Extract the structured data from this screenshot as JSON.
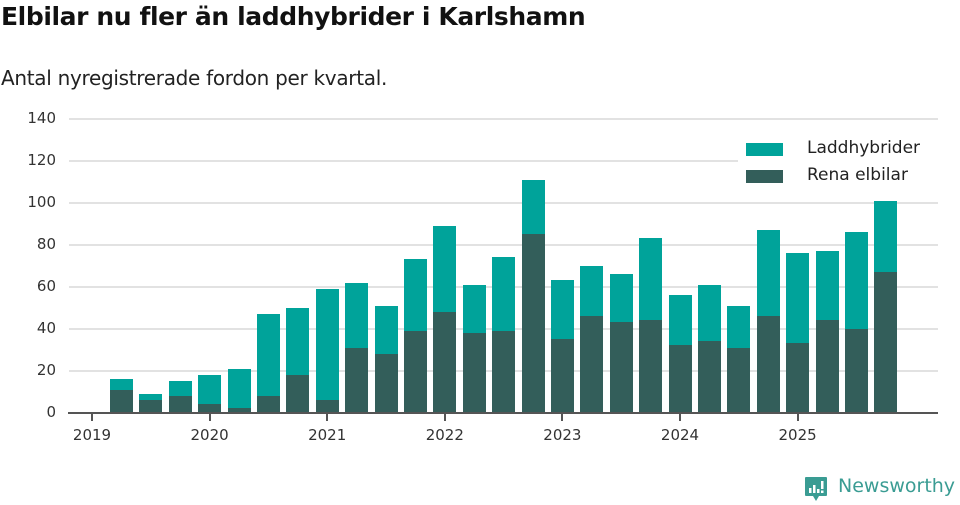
{
  "header": {
    "title": "Elbilar nu fler än laddhybrider i Karlshamn",
    "subtitle": "Antal nyregistrerade fordon per kvartal."
  },
  "legend": [
    {
      "label": "Laddhybrider",
      "color": "#00A39A"
    },
    {
      "label": "Rena elbilar",
      "color": "#335E5A"
    }
  ],
  "brand": {
    "name": "Newsworthy",
    "icon": "newsworthy-logo-icon",
    "color": "#3a9c93"
  },
  "chart_data": {
    "type": "bar",
    "stacked": true,
    "title": "Elbilar nu fler än laddhybrider i Karlshamn",
    "subtitle": "Antal nyregistrerade fordon per kvartal.",
    "xlabel": "",
    "ylabel": "",
    "ylim": [
      0,
      140
    ],
    "yticks": [
      0,
      20,
      40,
      60,
      80,
      100,
      120,
      140
    ],
    "xtick_labels": [
      "2019",
      "2020",
      "2021",
      "2022",
      "2023",
      "2024",
      "2025"
    ],
    "grid": true,
    "legend_position": "top-right",
    "categories": [
      "2019Q2",
      "2019Q3",
      "2019Q4",
      "2020Q1",
      "2020Q2",
      "2020Q3",
      "2020Q4",
      "2021Q1",
      "2021Q2",
      "2021Q3",
      "2021Q4",
      "2022Q1",
      "2022Q2",
      "2022Q3",
      "2022Q4",
      "2023Q1",
      "2023Q2",
      "2023Q3",
      "2023Q4",
      "2024Q1",
      "2024Q2",
      "2024Q3",
      "2024Q4",
      "2025Q1",
      "2025Q2",
      "2025Q3",
      "2025Q4"
    ],
    "series": [
      {
        "name": "Rena elbilar",
        "color": "#335E5A",
        "values": [
          11,
          6,
          8,
          4,
          2,
          8,
          18,
          6,
          31,
          28,
          39,
          48,
          38,
          39,
          85,
          35,
          46,
          43,
          44,
          32,
          34,
          31,
          46,
          33,
          44,
          40,
          67
        ]
      },
      {
        "name": "Laddhybrider",
        "color": "#00A39A",
        "values": [
          5,
          3,
          7,
          14,
          19,
          39,
          32,
          53,
          31,
          23,
          34,
          41,
          23,
          35,
          26,
          28,
          24,
          23,
          39,
          24,
          27,
          20,
          41,
          43,
          33,
          46,
          34
        ]
      }
    ],
    "totals": [
      16,
      9,
      15,
      18,
      21,
      47,
      50,
      59,
      62,
      51,
      73,
      89,
      61,
      74,
      111,
      63,
      70,
      66,
      83,
      56,
      61,
      51,
      87,
      76,
      77,
      86,
      101
    ]
  }
}
